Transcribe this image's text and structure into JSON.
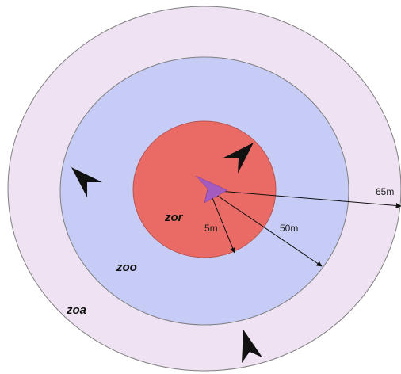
{
  "zones": {
    "zoa": {
      "label": "zoa",
      "color": "#efe3f3"
    },
    "zoo": {
      "label": "zoo",
      "color": "#c6ccf5"
    },
    "zor": {
      "label": "zor",
      "color": "#ea6b66"
    }
  },
  "distances": {
    "inner": "5m",
    "middle": "50m",
    "outer": "65m"
  },
  "focal_agent": {
    "color": "#a35bc0",
    "icon": "focal-agent-arrow-icon"
  },
  "neighbor_agents": {
    "color": "#111111",
    "icon": "agent-arrow-icon"
  }
}
